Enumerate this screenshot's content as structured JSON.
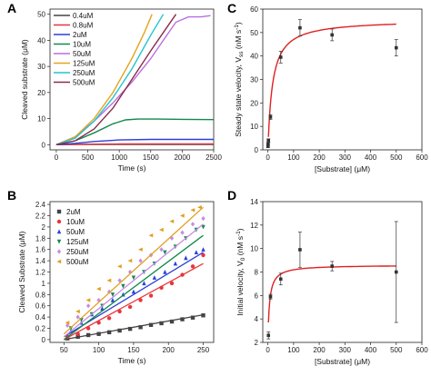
{
  "chart_data": [
    {
      "panel": "A",
      "type": "line",
      "xlabel": "Time (s)",
      "ylabel": "Cleaved substrate (μM)",
      "xlim": [
        -100,
        2500
      ],
      "ylim": [
        -2,
        52
      ],
      "xticks": [
        0,
        500,
        1000,
        1500,
        2000,
        2500
      ],
      "yticks": [
        0,
        10,
        20,
        30,
        40,
        50
      ],
      "legend_position": "top-left",
      "series": [
        {
          "name": "0.4uM",
          "color": "#444444",
          "x": [
            0,
            300,
            600,
            1000,
            1500,
            2000,
            2500
          ],
          "y": [
            0,
            0.05,
            0.1,
            0.1,
            0.1,
            0.1,
            0.1
          ]
        },
        {
          "name": "0.8uM",
          "color": "#e8353b",
          "x": [
            0,
            300,
            600,
            1000,
            1500,
            2000,
            2500
          ],
          "y": [
            0,
            0.1,
            0.2,
            0.25,
            0.3,
            0.3,
            0.3
          ]
        },
        {
          "name": "2uM",
          "color": "#2b3fd8",
          "x": [
            0,
            300,
            600,
            1000,
            1500,
            2000,
            2500
          ],
          "y": [
            0,
            0.5,
            1.2,
            1.8,
            2.0,
            2.0,
            2.0
          ]
        },
        {
          "name": "10uM",
          "color": "#0f8a4a",
          "x": [
            0,
            300,
            600,
            900,
            1100,
            1300,
            1600,
            2000,
            2500
          ],
          "y": [
            0,
            1.5,
            4.5,
            8.0,
            9.5,
            9.8,
            9.8,
            9.7,
            9.6
          ]
        },
        {
          "name": "50uM",
          "color": "#b96ee0",
          "x": [
            0,
            300,
            600,
            900,
            1200,
            1500,
            1700,
            1900,
            2100,
            2300,
            2450
          ],
          "y": [
            0,
            3,
            9,
            16,
            24,
            33,
            40,
            47,
            49,
            49,
            49.5
          ]
        },
        {
          "name": "125uM",
          "color": "#e8a21d",
          "x": [
            0,
            300,
            600,
            900,
            1200,
            1400,
            1520
          ],
          "y": [
            0,
            3,
            10,
            20,
            33,
            43,
            50
          ]
        },
        {
          "name": "250uM",
          "color": "#22c4cf",
          "x": [
            0,
            300,
            600,
            900,
            1200,
            1500,
            1700
          ],
          "y": [
            0,
            2.5,
            9,
            18,
            29,
            42,
            50
          ]
        },
        {
          "name": "500uM",
          "color": "#8a2c4a",
          "x": [
            0,
            300,
            600,
            900,
            1200,
            1500,
            1700,
            1900
          ],
          "y": [
            0,
            1.5,
            6,
            14,
            25,
            36,
            43,
            50
          ]
        }
      ]
    },
    {
      "panel": "B",
      "type": "scatter",
      "xlabel": "Time (s)",
      "ylabel": "Cleaved Substrate (μM)",
      "xlim": [
        30,
        265
      ],
      "ylim": [
        -0.05,
        2.45
      ],
      "xticks": [
        50,
        100,
        150,
        200,
        250
      ],
      "yticks": [
        0.0,
        0.2,
        0.4,
        0.6,
        0.8,
        1.0,
        1.2,
        1.4,
        1.6,
        1.8,
        2.0,
        2.2,
        2.4
      ],
      "legend_position": "top-left",
      "series": [
        {
          "name": "2uM",
          "color": "#444444",
          "marker": "square",
          "fit": [
            [
              50,
              0.0
            ],
            [
              250,
              0.44
            ]
          ],
          "points": [
            [
              55,
              0.02
            ],
            [
              70,
              0.05
            ],
            [
              85,
              0.08
            ],
            [
              100,
              0.1
            ],
            [
              115,
              0.13
            ],
            [
              130,
              0.16
            ],
            [
              145,
              0.19
            ],
            [
              160,
              0.22
            ],
            [
              175,
              0.26
            ],
            [
              190,
              0.29
            ],
            [
              205,
              0.32
            ],
            [
              220,
              0.36
            ],
            [
              235,
              0.39
            ],
            [
              250,
              0.43
            ]
          ]
        },
        {
          "name": "10uM",
          "color": "#e8353b",
          "marker": "circle",
          "fit": [
            [
              50,
              0.0
            ],
            [
              250,
              1.35
            ]
          ],
          "points": [
            [
              55,
              0.05
            ],
            [
              70,
              0.1
            ],
            [
              85,
              0.2
            ],
            [
              100,
              0.3
            ],
            [
              115,
              0.38
            ],
            [
              130,
              0.5
            ],
            [
              145,
              0.58
            ],
            [
              160,
              0.7
            ],
            [
              175,
              0.78
            ],
            [
              190,
              0.92
            ],
            [
              205,
              1.0
            ],
            [
              220,
              1.15
            ],
            [
              235,
              1.3
            ],
            [
              250,
              1.5
            ]
          ]
        },
        {
          "name": "50uM",
          "color": "#2b3fd8",
          "marker": "triangle-up",
          "fit": [
            [
              50,
              0.05
            ],
            [
              250,
              1.55
            ]
          ],
          "points": [
            [
              60,
              0.15
            ],
            [
              75,
              0.3
            ],
            [
              90,
              0.45
            ],
            [
              105,
              0.55
            ],
            [
              120,
              0.7
            ],
            [
              135,
              0.8
            ],
            [
              150,
              0.85
            ],
            [
              165,
              1.0
            ],
            [
              180,
              1.1
            ],
            [
              195,
              1.2
            ],
            [
              210,
              1.35
            ],
            [
              225,
              1.45
            ],
            [
              240,
              1.55
            ],
            [
              250,
              1.6
            ]
          ]
        },
        {
          "name": "125uM",
          "color": "#0f8a4a",
          "marker": "triangle-down",
          "fit": [
            [
              50,
              0.0
            ],
            [
              250,
              1.85
            ]
          ],
          "points": [
            [
              60,
              0.2
            ],
            [
              75,
              0.35
            ],
            [
              90,
              0.45
            ],
            [
              105,
              0.6
            ],
            [
              120,
              0.8
            ],
            [
              135,
              0.95
            ],
            [
              150,
              1.1
            ],
            [
              165,
              1.2
            ],
            [
              180,
              1.35
            ],
            [
              195,
              1.55
            ],
            [
              210,
              1.65
            ],
            [
              225,
              1.8
            ],
            [
              240,
              1.95
            ],
            [
              250,
              2.0
            ]
          ]
        },
        {
          "name": "250uM",
          "color": "#c98be6",
          "marker": "diamond",
          "fit": [
            [
              50,
              0.05
            ],
            [
              250,
              2.05
            ]
          ],
          "points": [
            [
              55,
              0.25
            ],
            [
              70,
              0.4
            ],
            [
              85,
              0.6
            ],
            [
              100,
              0.7
            ],
            [
              115,
              0.85
            ],
            [
              130,
              1.05
            ],
            [
              145,
              1.2
            ],
            [
              160,
              1.4
            ],
            [
              175,
              1.5
            ],
            [
              190,
              1.6
            ],
            [
              205,
              1.8
            ],
            [
              220,
              1.9
            ],
            [
              235,
              2.05
            ],
            [
              250,
              2.15
            ]
          ]
        },
        {
          "name": "500uM",
          "color": "#e0a020",
          "marker": "triangle-left",
          "fit": [
            [
              50,
              0.1
            ],
            [
              250,
              2.35
            ]
          ],
          "points": [
            [
              55,
              0.3
            ],
            [
              70,
              0.5
            ],
            [
              85,
              0.7
            ],
            [
              100,
              0.9
            ],
            [
              115,
              1.05
            ],
            [
              130,
              1.3
            ],
            [
              145,
              1.4
            ],
            [
              160,
              1.6
            ],
            [
              175,
              1.85
            ],
            [
              190,
              1.95
            ],
            [
              205,
              2.1
            ],
            [
              220,
              2.2
            ],
            [
              235,
              2.3
            ],
            [
              245,
              2.35
            ]
          ]
        }
      ]
    },
    {
      "panel": "C",
      "type": "scatter",
      "xlabel": "[Substrate] (μM)",
      "ylabel": "Steady state velocity, Vss (nM s⁻¹)",
      "xlim": [
        -20,
        600
      ],
      "ylim": [
        0,
        60
      ],
      "xticks": [
        0,
        100,
        200,
        300,
        400,
        500,
        600
      ],
      "yticks": [
        0,
        10,
        20,
        30,
        40,
        50,
        60
      ],
      "fit_color": "#e02020",
      "fit": {
        "model": "michaelis-menten",
        "vmax": 55.5,
        "km": 18,
        "x_from": 2,
        "x_to": 500
      },
      "points": [
        {
          "x": 0.4,
          "y": 1.5,
          "err": 0.5
        },
        {
          "x": 0.8,
          "y": 2.5,
          "err": 0.5
        },
        {
          "x": 2,
          "y": 4,
          "err": 0.7
        },
        {
          "x": 10,
          "y": 14,
          "err": 1.0
        },
        {
          "x": 50,
          "y": 39.5,
          "err": 2.5
        },
        {
          "x": 125,
          "y": 52,
          "err": 3.5
        },
        {
          "x": 250,
          "y": 49,
          "err": 2.5
        },
        {
          "x": 500,
          "y": 43.5,
          "err": 3.5
        }
      ]
    },
    {
      "panel": "D",
      "type": "scatter",
      "xlabel": "[Substrate] (μM)",
      "ylabel": "Initial velocity, V0 (nM s⁻¹)",
      "xlim": [
        -20,
        600
      ],
      "ylim": [
        2,
        14
      ],
      "xticks": [
        0,
        100,
        200,
        300,
        400,
        500,
        600
      ],
      "yticks": [
        2,
        4,
        6,
        8,
        10,
        12,
        14
      ],
      "fit_color": "#e02020",
      "fit": {
        "model": "michaelis-menten-offset",
        "v0": 2.3,
        "vmax": 6.3,
        "km": 7,
        "x_from": 2,
        "x_to": 500
      },
      "points": [
        {
          "x": 2,
          "y": 2.6,
          "err": 0.3
        },
        {
          "x": 10,
          "y": 5.9,
          "err": 0.2
        },
        {
          "x": 50,
          "y": 7.4,
          "err": 0.5
        },
        {
          "x": 125,
          "y": 9.9,
          "err": 1.5
        },
        {
          "x": 250,
          "y": 8.5,
          "err": 0.4
        },
        {
          "x": 500,
          "y": 8.0,
          "err": 4.3
        }
      ]
    }
  ],
  "panel_labels": [
    "A",
    "B",
    "C",
    "D"
  ],
  "c_ylabel_parts": {
    "main": "Steady state velocity, V",
    "sub": "ss",
    "unit": " (nM s",
    "sup": "-1",
    "close": ")"
  },
  "d_ylabel_parts": {
    "main": "Initial velocity, V",
    "sub": "0",
    "unit": " (nM s",
    "sup": "-1",
    "close": ")"
  }
}
